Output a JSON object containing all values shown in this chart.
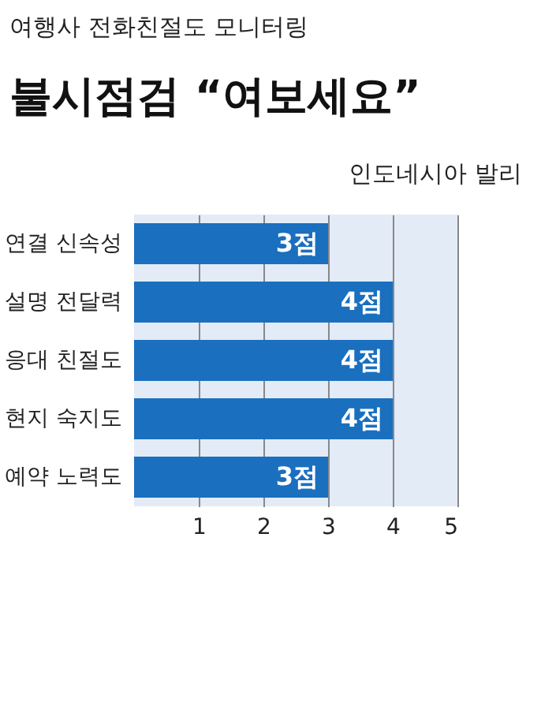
{
  "chart_data": {
    "type": "bar",
    "orientation": "horizontal",
    "subtitle": "여행사 전화친절도 모니터링",
    "title": "불시점검 “여보세요”",
    "annotations": [
      "인도네시아 발리"
    ],
    "categories": [
      "연결 신속성",
      "설명 전달력",
      "응대 친절도",
      "현지 숙지도",
      "예약 노력도"
    ],
    "values": [
      3,
      4,
      4,
      4,
      3
    ],
    "value_labels": [
      "3점",
      "4점",
      "4점",
      "4점",
      "3점"
    ],
    "color": "#1a6fbf",
    "xlim": [
      0,
      5
    ],
    "xticks": [
      1,
      2,
      3,
      4,
      5
    ],
    "grid": "x"
  }
}
